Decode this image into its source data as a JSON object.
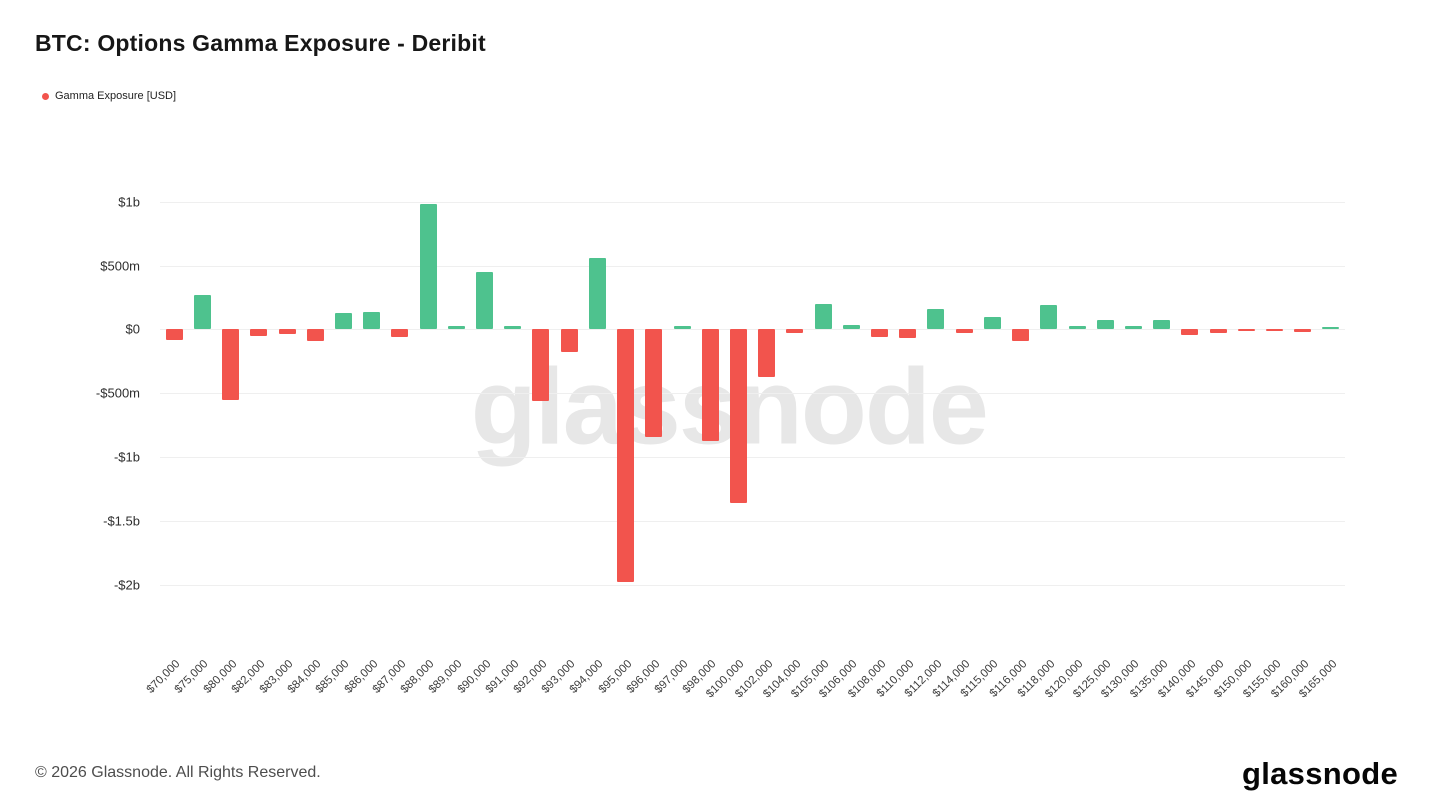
{
  "header": {
    "title": "BTC: Options Gamma Exposure - Deribit"
  },
  "legend": {
    "label": "Gamma Exposure [USD]"
  },
  "watermark": {
    "text": "glassnode"
  },
  "footer": {
    "copyright": "© 2026 Glassnode. All Rights Reserved.",
    "logo": "glassnode"
  },
  "colors": {
    "positive": "#4ec28e",
    "negative": "#f2544d",
    "grid": "#efefef",
    "axis_text": "#2e2e2e"
  },
  "chart_data": {
    "type": "bar",
    "title": "BTC: Options Gamma Exposure - Deribit",
    "series_name": "Gamma Exposure [USD]",
    "unit": "USD (millions)",
    "grid": true,
    "legend_position": "top-left",
    "xlabel": "",
    "ylabel": "",
    "ylim_musd": [
      -2470,
      1130
    ],
    "y_ticks": [
      {
        "value": 1000,
        "label": "$1b"
      },
      {
        "value": 500,
        "label": "$500m"
      },
      {
        "value": 0,
        "label": "$0"
      },
      {
        "value": -500,
        "label": "-$500m"
      },
      {
        "value": -1000,
        "label": "-$1b"
      },
      {
        "value": -1500,
        "label": "-$1.5b"
      },
      {
        "value": -2000,
        "label": "-$2b"
      }
    ],
    "categories": [
      "$70,000",
      "$75,000",
      "$80,000",
      "$82,000",
      "$83,000",
      "$84,000",
      "$85,000",
      "$86,000",
      "$87,000",
      "$88,000",
      "$89,000",
      "$90,000",
      "$91,000",
      "$92,000",
      "$93,000",
      "$94,000",
      "$95,000",
      "$96,000",
      "$97,000",
      "$98,000",
      "$100,000",
      "$102,000",
      "$104,000",
      "$105,000",
      "$106,000",
      "$108,000",
      "$110,000",
      "$112,000",
      "$114,000",
      "$115,000",
      "$116,000",
      "$118,000",
      "$120,000",
      "$125,000",
      "$130,000",
      "$135,000",
      "$140,000",
      "$145,000",
      "$150,000",
      "$155,000",
      "$160,000",
      "$165,000"
    ],
    "values_musd": [
      -80,
      270,
      -550,
      -50,
      -40,
      -90,
      130,
      140,
      -60,
      980,
      25,
      450,
      30,
      -560,
      -180,
      560,
      -1980,
      -840,
      30,
      -870,
      -1360,
      -370,
      -25,
      200,
      35,
      -60,
      -70,
      160,
      -30,
      95,
      -95,
      190,
      25,
      75,
      30,
      75,
      -45,
      -25,
      -10,
      -15,
      -20,
      8
    ]
  }
}
